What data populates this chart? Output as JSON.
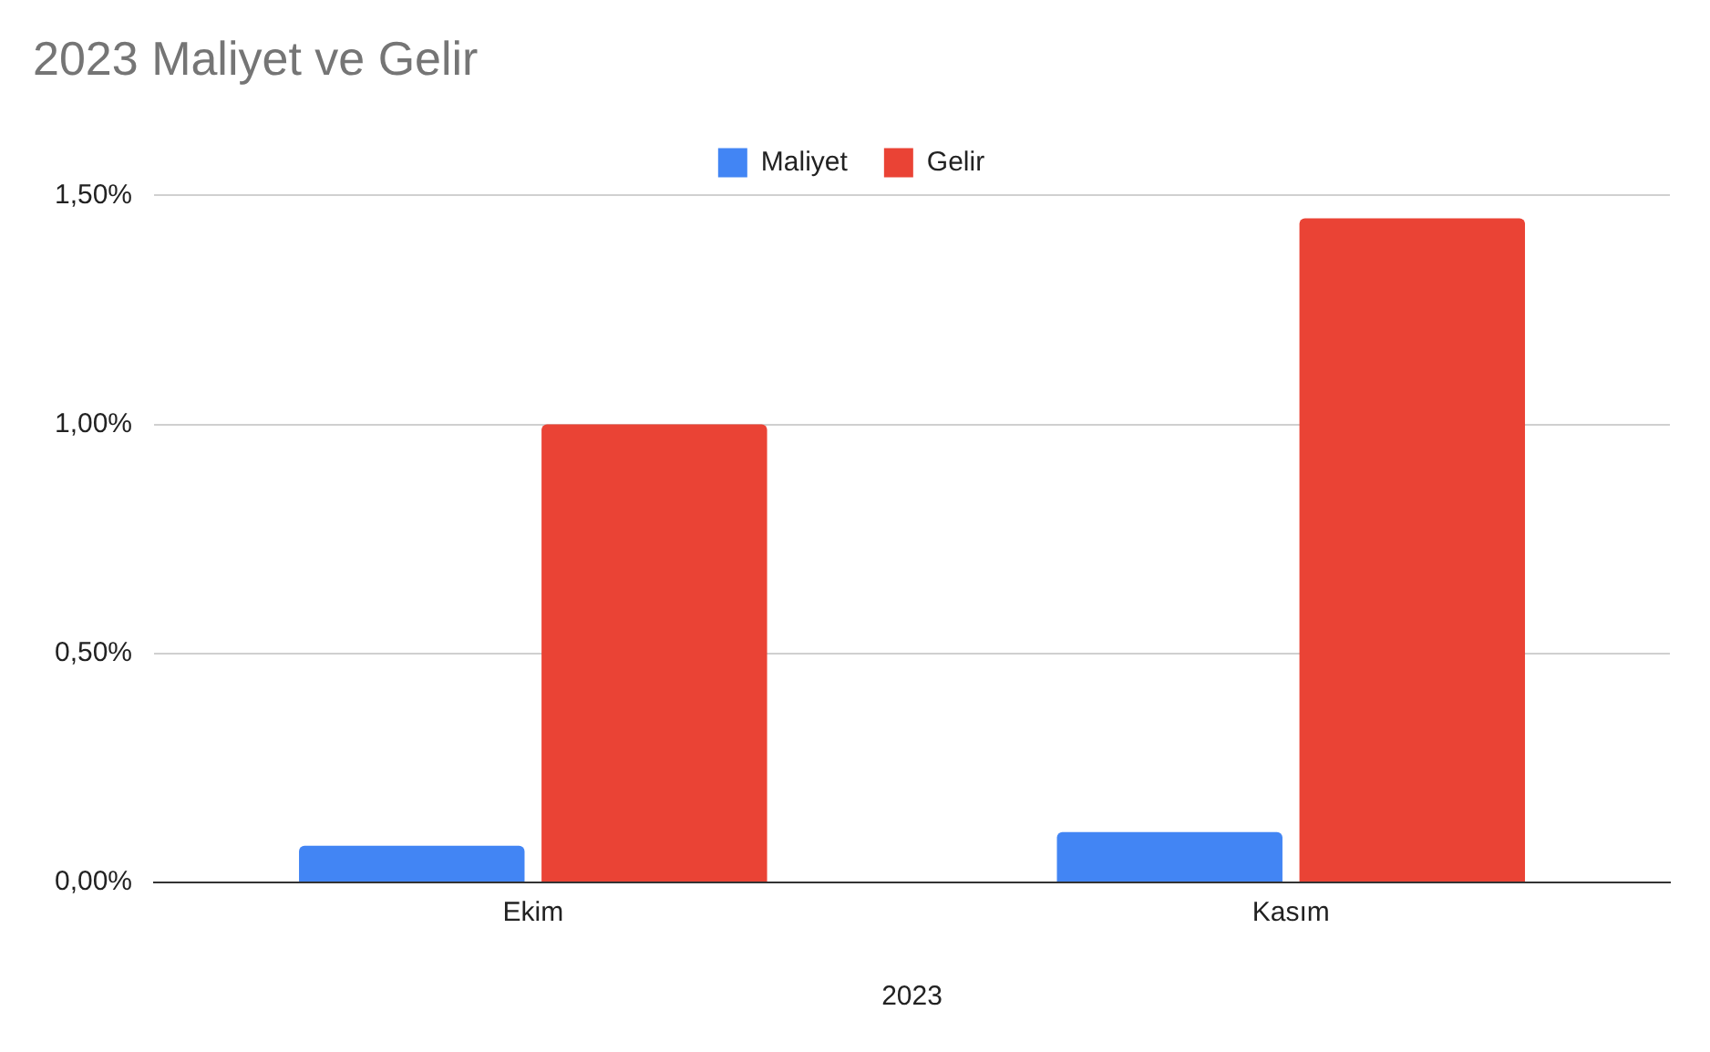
{
  "chart_data": {
    "type": "bar",
    "title": "2023 Maliyet ve Gelir",
    "xlabel": "2023",
    "categories": [
      "Ekim",
      "Kasım"
    ],
    "series": [
      {
        "name": "Maliyet",
        "color": "#4285f4",
        "values": [
          0.08,
          0.11
        ]
      },
      {
        "name": "Gelir",
        "color": "#ea4335",
        "values": [
          1.0,
          1.45
        ]
      }
    ],
    "ylim": [
      0,
      1.5
    ],
    "yticks": [
      {
        "value": 0,
        "label": "0,00%"
      },
      {
        "value": 0.5,
        "label": "0,50%"
      },
      {
        "value": 1,
        "label": "1,00%"
      },
      {
        "value": 1.5,
        "label": "1,50%"
      }
    ],
    "grid": "y",
    "legend": "top"
  }
}
